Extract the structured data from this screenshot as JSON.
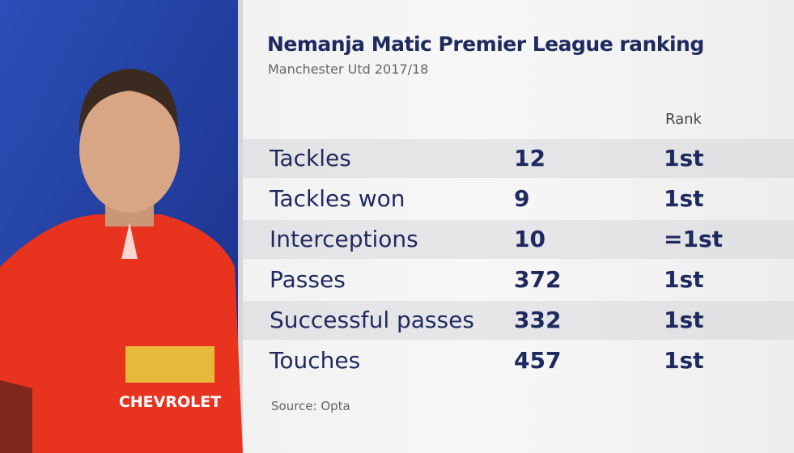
{
  "header": {
    "title": "Nemanja Matic Premier League ranking",
    "subtitle": "Manchester Utd 2017/18"
  },
  "table": {
    "columns": [
      "Rank"
    ],
    "rows": [
      [
        "Tackles",
        "12",
        "1st"
      ],
      [
        "Tackles won",
        "9",
        "1st"
      ],
      [
        "Interceptions",
        "10",
        "=1st"
      ],
      [
        "Passes",
        "372",
        "1st"
      ],
      [
        "Successful passes",
        "332",
        "1st"
      ],
      [
        "Touches",
        "457",
        "1st"
      ]
    ]
  },
  "footer": {
    "source": "Source: Opta"
  },
  "graphic": {
    "sponsor": "CHEVROLET"
  }
}
